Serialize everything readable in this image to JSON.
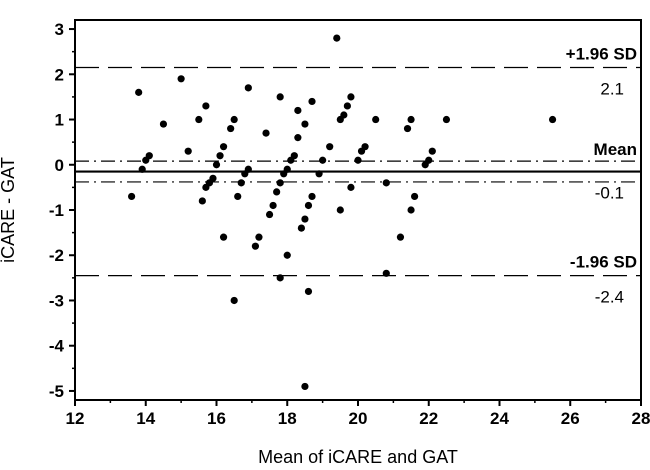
{
  "chart_data": {
    "type": "scatter",
    "title": "",
    "xlabel": "Mean of iCARE and GAT",
    "ylabel": "iCARE - GAT",
    "xlim": [
      12,
      28
    ],
    "ylim": [
      -5.2,
      3.2
    ],
    "xticks": [
      "12",
      "14",
      "16",
      "18",
      "20",
      "22",
      "24",
      "26",
      "28"
    ],
    "yticks": [
      "3",
      "2",
      "1",
      "0",
      "-1",
      "-2",
      "-3",
      "-4",
      "-5"
    ],
    "grid": false,
    "marker_color": "#000000",
    "reference_lines": [
      {
        "name": "+1.96 SD",
        "label": "+1.96 SD",
        "value_label": "2.1",
        "y": 2.15,
        "style": "dashed"
      },
      {
        "name": "Mean",
        "label": "Mean",
        "value_label": "-0.1",
        "y": -0.15,
        "style": "solid"
      },
      {
        "name": "Mean upper CI",
        "y": 0.08,
        "style": "dash-dot"
      },
      {
        "name": "Mean lower CI",
        "y": -0.38,
        "style": "dash-dot"
      },
      {
        "name": "-1.96 SD",
        "label": "-1.96 SD",
        "value_label": "-2.4",
        "y": -2.45,
        "style": "dashed"
      }
    ],
    "points": [
      [
        13.6,
        -0.7
      ],
      [
        13.8,
        1.6
      ],
      [
        13.9,
        -0.1
      ],
      [
        14.0,
        0.1
      ],
      [
        14.1,
        0.2
      ],
      [
        14.5,
        0.9
      ],
      [
        15.0,
        1.9
      ],
      [
        15.2,
        0.3
      ],
      [
        15.5,
        1.0
      ],
      [
        15.6,
        -0.8
      ],
      [
        15.7,
        1.3
      ],
      [
        15.7,
        -0.5
      ],
      [
        15.8,
        -0.4
      ],
      [
        15.9,
        -0.3
      ],
      [
        16.0,
        0.0
      ],
      [
        16.1,
        0.2
      ],
      [
        16.2,
        0.4
      ],
      [
        16.2,
        -1.6
      ],
      [
        16.4,
        0.8
      ],
      [
        16.5,
        1.0
      ],
      [
        16.5,
        -3.0
      ],
      [
        16.6,
        -0.7
      ],
      [
        16.7,
        -0.4
      ],
      [
        16.8,
        -0.2
      ],
      [
        16.9,
        -0.1
      ],
      [
        16.9,
        1.7
      ],
      [
        17.1,
        -1.8
      ],
      [
        17.2,
        -1.6
      ],
      [
        17.4,
        0.7
      ],
      [
        17.5,
        -1.1
      ],
      [
        17.6,
        -0.9
      ],
      [
        17.7,
        -0.6
      ],
      [
        17.8,
        -0.4
      ],
      [
        17.8,
        1.5
      ],
      [
        17.8,
        -2.5
      ],
      [
        17.9,
        -0.2
      ],
      [
        18.0,
        -0.1
      ],
      [
        18.0,
        -2.0
      ],
      [
        18.1,
        0.1
      ],
      [
        18.2,
        0.2
      ],
      [
        18.3,
        1.2
      ],
      [
        18.3,
        0.6
      ],
      [
        18.4,
        -1.4
      ],
      [
        18.5,
        -1.2
      ],
      [
        18.5,
        0.9
      ],
      [
        18.6,
        -0.9
      ],
      [
        18.7,
        -0.7
      ],
      [
        18.7,
        1.4
      ],
      [
        18.6,
        -2.8
      ],
      [
        18.5,
        -4.9
      ],
      [
        18.9,
        -0.2
      ],
      [
        19.0,
        0.1
      ],
      [
        19.2,
        0.4
      ],
      [
        19.4,
        2.8
      ],
      [
        19.5,
        1.0
      ],
      [
        19.5,
        -1.0
      ],
      [
        19.6,
        1.1
      ],
      [
        19.7,
        1.3
      ],
      [
        19.8,
        1.5
      ],
      [
        19.8,
        -0.5
      ],
      [
        20.0,
        0.1
      ],
      [
        20.1,
        0.3
      ],
      [
        20.2,
        0.4
      ],
      [
        20.5,
        1.0
      ],
      [
        20.8,
        -0.4
      ],
      [
        20.8,
        -2.4
      ],
      [
        21.2,
        -1.6
      ],
      [
        21.4,
        0.8
      ],
      [
        21.5,
        1.0
      ],
      [
        21.5,
        -1.0
      ],
      [
        21.6,
        -0.7
      ],
      [
        21.9,
        0.0
      ],
      [
        22.0,
        0.1
      ],
      [
        22.1,
        0.3
      ],
      [
        22.5,
        1.0
      ],
      [
        25.5,
        1.0
      ]
    ]
  }
}
